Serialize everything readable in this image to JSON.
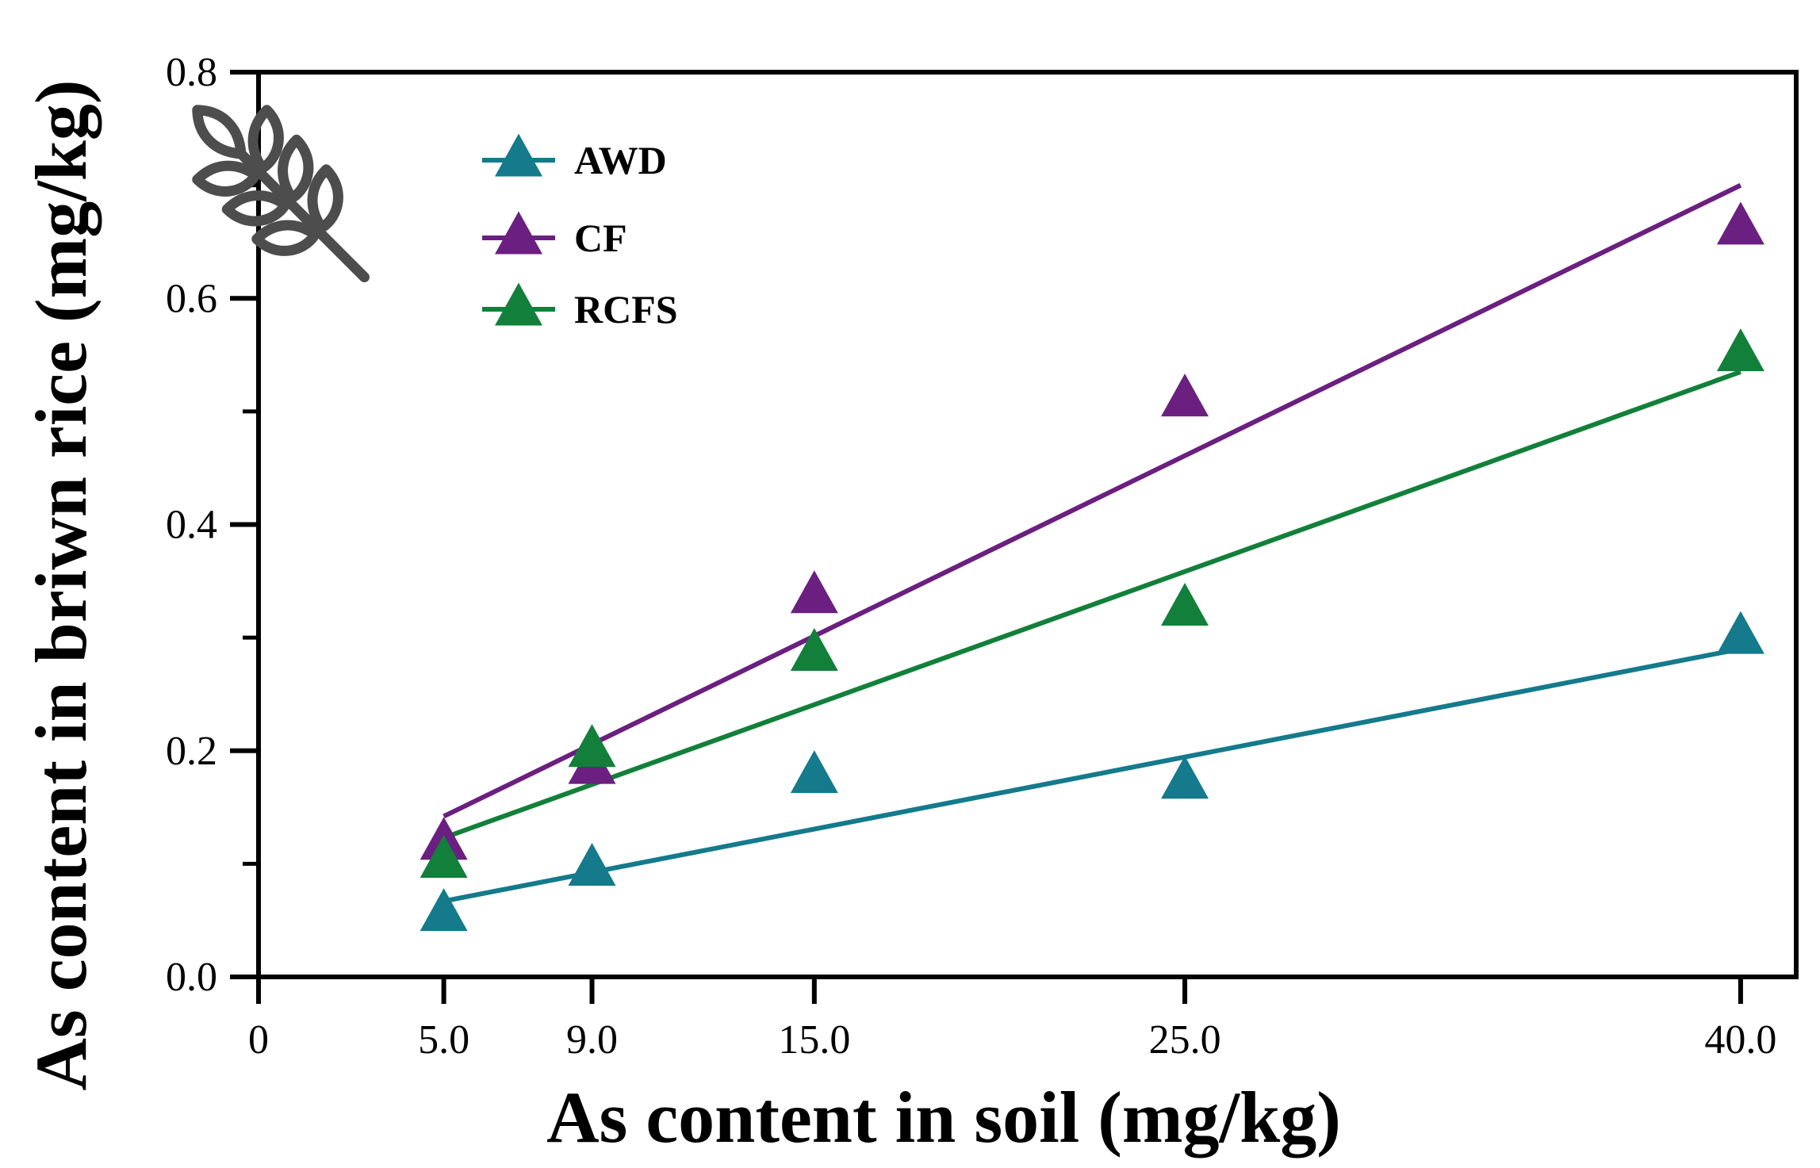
{
  "chart_data": {
    "type": "scatter",
    "title": "",
    "xlabel": "As content in soil (mg/kg)",
    "ylabel": "As content in briwn rice (mg/kg)",
    "xlim": [
      0,
      41.5
    ],
    "ylim": [
      0,
      0.8
    ],
    "x_tick_values": [
      0,
      5,
      9,
      15,
      25,
      40
    ],
    "x_tick_labels": [
      "0",
      "5.0",
      "9.0",
      "15.0",
      "25.0",
      "40.0"
    ],
    "y_tick_values": [
      0,
      0.2,
      0.4,
      0.6,
      0.8
    ],
    "y_tick_labels": [
      "0.0",
      "0.2",
      "0.4",
      "0.6",
      "0.8"
    ],
    "grid": false,
    "legend_position": "top-left",
    "series": [
      {
        "name": "AWD",
        "color": "#147a8c",
        "marker": "triangle",
        "x": [
          5,
          9,
          15,
          25,
          40
        ],
        "y": [
          0.055,
          0.095,
          0.177,
          0.172,
          0.3
        ],
        "fit_line": {
          "x": [
            5,
            40
          ],
          "y": [
            0.067,
            0.29
          ]
        }
      },
      {
        "name": "CF",
        "color": "#6b1f80",
        "marker": "triangle",
        "x": [
          5,
          9,
          15,
          25,
          40
        ],
        "y": [
          0.118,
          0.185,
          0.336,
          0.51,
          0.662
        ],
        "fit_line": {
          "x": [
            5,
            40
          ],
          "y": [
            0.142,
            0.7
          ]
        }
      },
      {
        "name": "RCFS",
        "color": "#12803a",
        "marker": "triangle",
        "x": [
          5,
          9,
          15,
          25,
          40
        ],
        "y": [
          0.102,
          0.2,
          0.285,
          0.325,
          0.55
        ],
        "fit_line": {
          "x": [
            5,
            40
          ],
          "y": [
            0.123,
            0.535
          ]
        }
      }
    ]
  },
  "icons": {
    "rice": "rice-grain-icon",
    "rice_color": "#4d4d4d"
  }
}
